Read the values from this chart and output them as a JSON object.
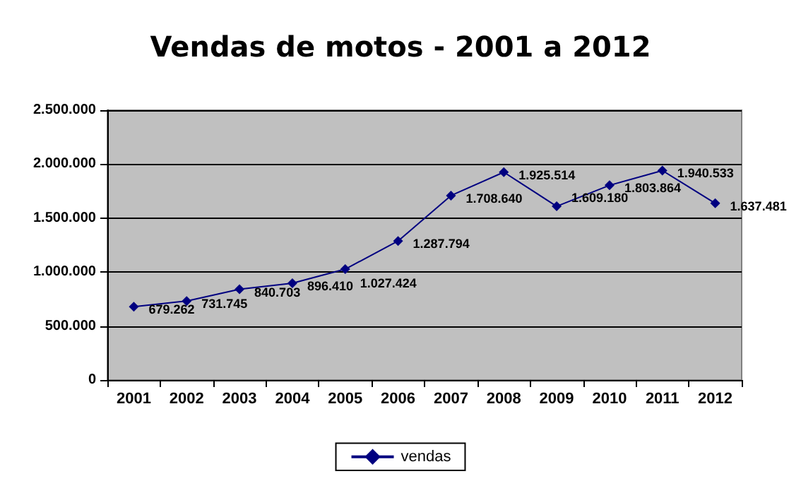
{
  "chart_data": {
    "type": "line",
    "title": "Vendas de motos - 2001 a 2012",
    "categories": [
      "2001",
      "2002",
      "2003",
      "2004",
      "2005",
      "2006",
      "2007",
      "2008",
      "2009",
      "2010",
      "2011",
      "2012"
    ],
    "series": [
      {
        "name": "vendas",
        "color": "#000080",
        "values": [
          679262,
          731745,
          840703,
          896410,
          1027424,
          1287794,
          1708640,
          1925514,
          1609180,
          1803864,
          1940533,
          1637481
        ],
        "value_labels": [
          "679.262",
          "731.745",
          "840.703",
          "896.410",
          "1.027.424",
          "1.287.794",
          "1.708.640",
          "1.925.514",
          "1.609.180",
          "1.803.864",
          "1.940.533",
          "1.637.481"
        ]
      }
    ],
    "ylim": [
      0,
      2500000
    ],
    "yticks": [
      {
        "value": 0,
        "label": "0"
      },
      {
        "value": 500000,
        "label": "500.000"
      },
      {
        "value": 1000000,
        "label": "1.000.000"
      },
      {
        "value": 1500000,
        "label": "1.500.000"
      },
      {
        "value": 2000000,
        "label": "2.000.000"
      },
      {
        "value": 2500000,
        "label": "2.500.000"
      }
    ],
    "grid": "y",
    "legend": "bottom",
    "marker": "diamond",
    "line_style": "solid"
  }
}
